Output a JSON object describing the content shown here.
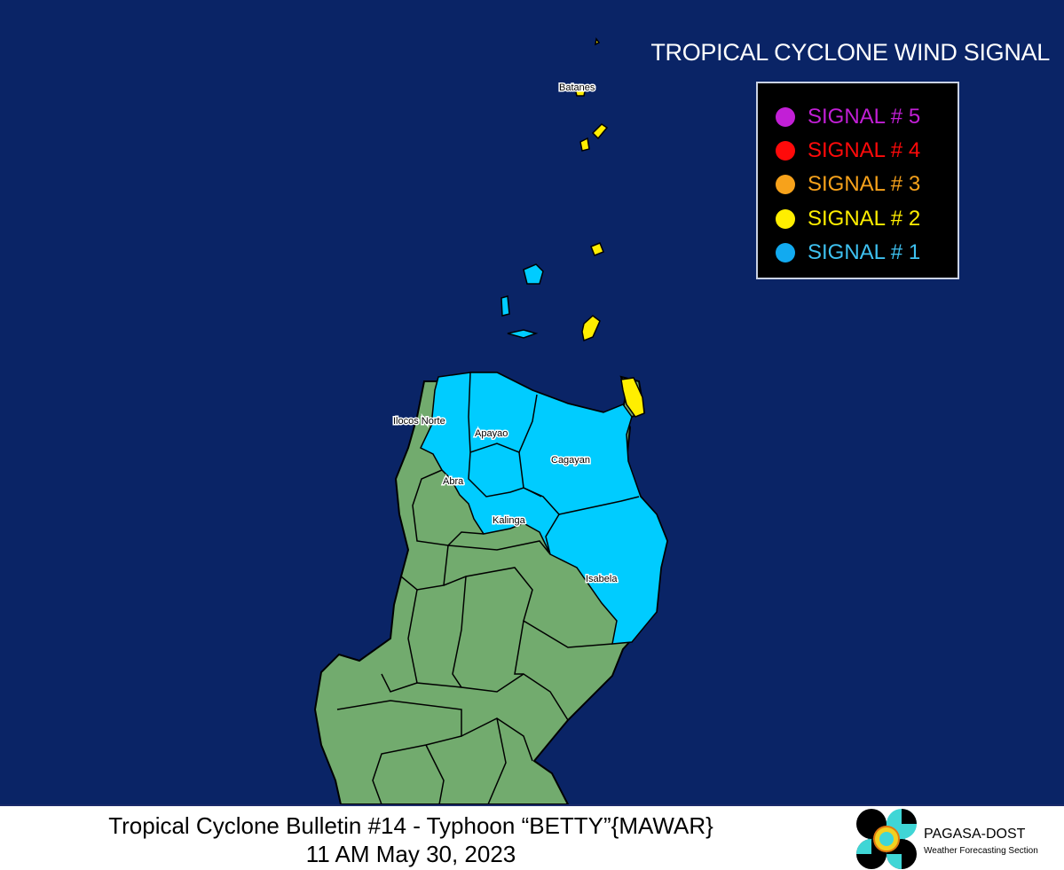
{
  "legend": {
    "title": "TROPICAL CYCLONE WIND SIGNAL",
    "items": [
      {
        "label": "SIGNAL # 5",
        "color": "#c21fd6"
      },
      {
        "label": "SIGNAL # 4",
        "color": "#ff0a0a"
      },
      {
        "label": "SIGNAL # 3",
        "color": "#f7a21b"
      },
      {
        "label": "SIGNAL # 2",
        "color": "#ffee00"
      },
      {
        "label": "SIGNAL # 1",
        "color": "#12aaf0"
      }
    ]
  },
  "map": {
    "ocean_color": "#0a2466",
    "land_color": "#72ab6e",
    "signal1_color": "#00ccff",
    "signal2_color": "#ffee00",
    "provinces": {
      "batanes": "Batanes",
      "ilocos_norte": "Ilocos Norte",
      "apayao": "Apayao",
      "cagayan": "Cagayan",
      "abra": "Abra",
      "kalinga": "Kalinga",
      "isabela": "Isabela"
    },
    "signal_areas": {
      "signal_2": [
        "Batanes",
        "Babuyan Islands (part)",
        "Santa Ana, Cagayan"
      ],
      "signal_1": [
        "Ilocos Norte (east)",
        "Apayao",
        "Cagayan",
        "Abra (east)",
        "Kalinga (east)",
        "Isabela (east)"
      ]
    }
  },
  "footer": {
    "line1": "Tropical Cyclone Bulletin #14 - Typhoon “BETTY”{MAWAR}",
    "line2": "11 AM May 30, 2023",
    "agency": "PAGASA-DOST",
    "section": "Weather Forecasting Section"
  }
}
